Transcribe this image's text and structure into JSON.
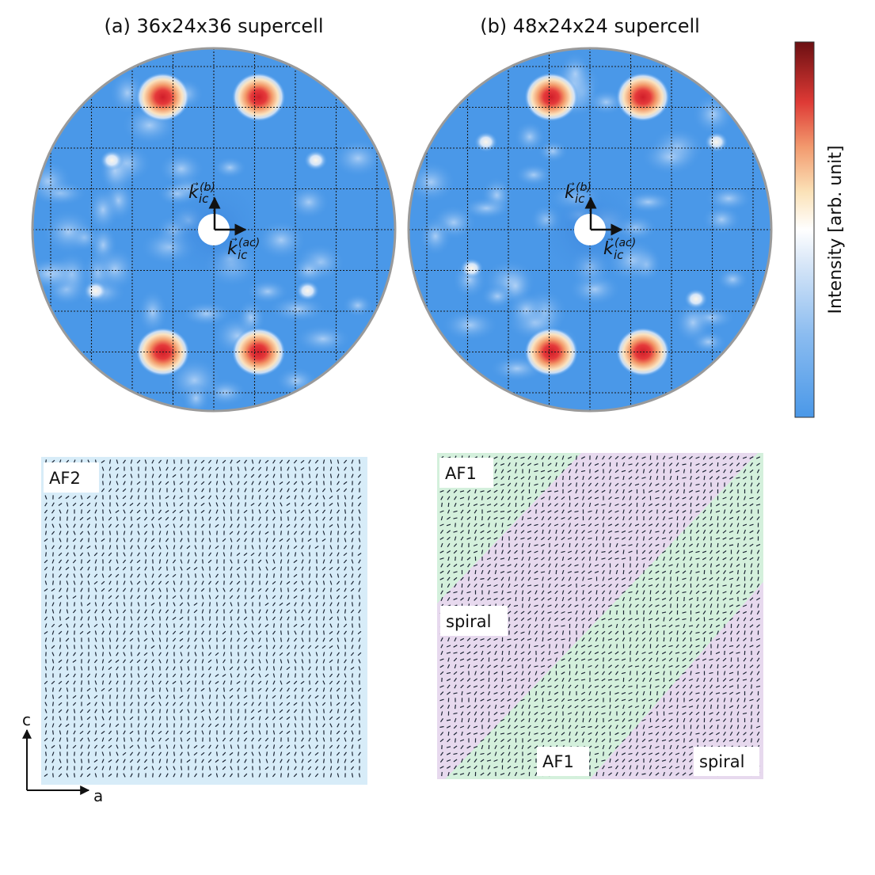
{
  "chart_data": [
    {
      "type": "heatmap",
      "title": "(a) 36x24x36 supercell",
      "vector_labels": {
        "vertical": "k_ic^(b)",
        "horizontal": "k_ic^(ac)"
      },
      "bright_peaks": [
        {
          "u": -1.25,
          "v": 3.25
        },
        {
          "u": 1.1,
          "v": 3.25
        },
        {
          "u": -1.25,
          "v": -3.0
        },
        {
          "u": 1.1,
          "v": -3.0
        }
      ],
      "weak_spots": [
        {
          "u": -2.5,
          "v": 1.7
        },
        {
          "u": 2.5,
          "v": 1.7
        },
        {
          "u": -2.9,
          "v": -1.5
        },
        {
          "u": 2.3,
          "v": -1.5
        }
      ],
      "colorbar": {
        "label": "Intensity [arb. unit]",
        "min_color": "#4a98e8",
        "mid_color": "#ffffff",
        "max_color": "#6b0f12"
      }
    },
    {
      "type": "heatmap",
      "title": "(b) 48x24x24 supercell",
      "vector_labels": {
        "vertical": "k_ic^(b)",
        "horizontal": "k_ic^(ac)"
      },
      "bright_peaks": [
        {
          "u": -0.95,
          "v": 3.25
        },
        {
          "u": 1.3,
          "v": 3.25
        },
        {
          "u": -0.95,
          "v": -3.0
        },
        {
          "u": 1.3,
          "v": -3.0
        }
      ],
      "weak_spots": [
        {
          "u": -2.55,
          "v": 2.15
        },
        {
          "u": 3.1,
          "v": 2.15
        },
        {
          "u": -2.9,
          "v": -0.95
        },
        {
          "u": 2.6,
          "v": -1.7
        }
      ],
      "colorbar": {
        "label": "Intensity [arb. unit]",
        "min_color": "#4a98e8",
        "mid_color": "#ffffff",
        "max_color": "#6b0f12"
      }
    }
  ],
  "titles": {
    "a": "(a) 36x24x36 supercell",
    "b": "(b) 48x24x24 supercell"
  },
  "colorbar_label": "Intensity [arb. unit]",
  "vector_labels": {
    "k_base": "k",
    "sub": "ic",
    "sup_b": "(b)",
    "sup_ac": "(ac)"
  },
  "spin_panels": {
    "left": {
      "labels": [
        "AF2"
      ],
      "background": "#d7ecf8"
    },
    "right": {
      "labels": [
        "AF1",
        "spiral",
        "AF1",
        "spiral"
      ],
      "af1_color": "#d4f0dc",
      "spiral_color": "#e7d9ee"
    }
  },
  "axes": {
    "vertical": "c",
    "horizontal": "a"
  },
  "colors": {
    "map_base": "#4a98e8",
    "circle_edge": "#9a9a9a",
    "grid": "#1a1a1a",
    "arrows": "#111111"
  }
}
